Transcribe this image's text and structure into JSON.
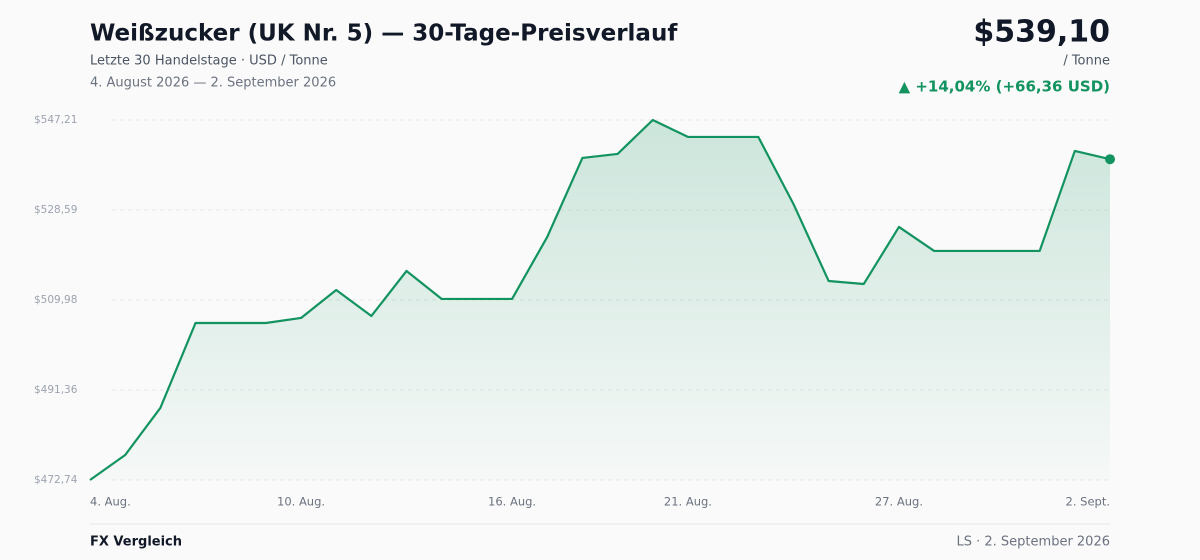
{
  "chart_data": {
    "type": "line",
    "title": "Weißzucker (UK Nr. 5) — 30-Tage-Preisverlauf",
    "subtitle": "Letzte 30 Handelstage · USD / Tonne",
    "date_range": "4. August 2026 — 2. September 2026",
    "price_label": "$539,10",
    "unit_label": "/ Tonne",
    "change_label": "▲ +14,04% (+66,36 USD)",
    "footer_left": "FX Vergleich",
    "footer_right": "LS · 2. September 2026",
    "categories": [
      "4. Aug.",
      null,
      null,
      null,
      null,
      null,
      "10. Aug.",
      null,
      null,
      null,
      null,
      null,
      "16. Aug.",
      null,
      null,
      null,
      null,
      "21. Aug.",
      null,
      null,
      null,
      null,
      null,
      "27. Aug.",
      null,
      null,
      null,
      null,
      null,
      "2. Sept."
    ],
    "series": [
      {
        "name": "Weißzucker",
        "color": "#12935f",
        "values": [
          472.74,
          477.91,
          487.64,
          505.22,
          505.22,
          505.22,
          506.26,
          512.05,
          506.67,
          515.98,
          510.19,
          510.19,
          510.19,
          523.02,
          539.36,
          540.19,
          547.21,
          543.71,
          543.71,
          543.71,
          529.84,
          513.91,
          513.29,
          525.09,
          520.12,
          520.12,
          520.12,
          520.12,
          540.81,
          539.1
        ]
      }
    ],
    "ylim": [
      472.74,
      547.21
    ],
    "yticks": [
      {
        "value": 472.74,
        "label": "$472,74"
      },
      {
        "value": 491.36,
        "label": "$491,36"
      },
      {
        "value": 509.98,
        "label": "$509,98"
      },
      {
        "value": 528.59,
        "label": "$528,59"
      },
      {
        "value": 547.21,
        "label": "$547,21"
      }
    ],
    "grid": true
  }
}
